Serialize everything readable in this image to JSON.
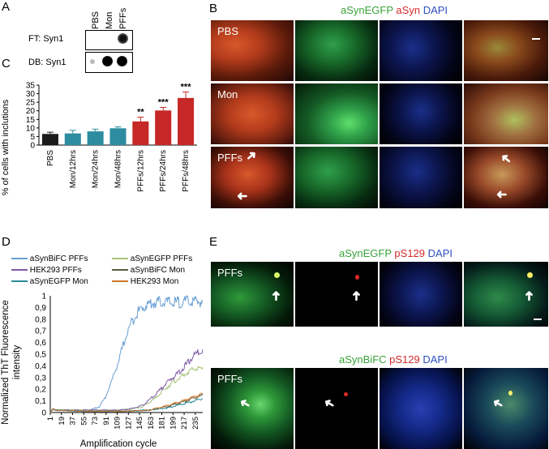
{
  "panels": {
    "A": {
      "label": "A",
      "columns": [
        "PBS",
        "Mon",
        "PFFs"
      ],
      "rows": [
        "FT: Syn1",
        "DB: Syn1"
      ]
    },
    "B": {
      "label": "B",
      "title_parts": [
        {
          "text": "aSynEGFP",
          "color": "#3aa33a"
        },
        {
          "text": "aSyn",
          "color": "#d42a2a"
        },
        {
          "text": "DAPI",
          "color": "#2e4fc0"
        }
      ],
      "rows": [
        "PBS",
        "Mon",
        "PFFs"
      ]
    },
    "C": {
      "label": "C",
      "significance": [
        "",
        "",
        "",
        "",
        "**",
        "***",
        "***"
      ]
    },
    "D": {
      "label": "D",
      "legend": [
        "aSynBiFC PFFs",
        "aSynEGFP PFFs",
        "HEK293 PFFs",
        "aSynBiFC Mon",
        "aSynEGFP Mon",
        "HEK293 Mon"
      ]
    },
    "E": {
      "label": "E",
      "row1_title": [
        {
          "text": "aSynEGFP",
          "color": "#3aa33a"
        },
        {
          "text": "pS129",
          "color": "#d42a2a"
        },
        {
          "text": "DAPI",
          "color": "#2e4fc0"
        }
      ],
      "row2_title": [
        {
          "text": "aSynBiFC",
          "color": "#3aa33a"
        },
        {
          "text": "pS129",
          "color": "#d42a2a"
        },
        {
          "text": "DAPI",
          "color": "#2e4fc0"
        }
      ],
      "row_label": "PFFs"
    }
  },
  "chart_data": [
    {
      "type": "bar",
      "categories": [
        "PBS",
        "Mon/12hrs",
        "Mon/24hrs",
        "Mon/48hrs",
        "PFFs/12hrs",
        "PFFs/24hrs",
        "PFFs/48hrs"
      ],
      "values": [
        6.5,
        6.8,
        8,
        9.8,
        13.8,
        20.2,
        27.5
      ],
      "errors": [
        1,
        1.8,
        1.3,
        0.8,
        2.5,
        1.8,
        3.5
      ],
      "colors": [
        "#1a1a1a",
        "#2e8ca0",
        "#2e8ca0",
        "#2e8ca0",
        "#c62828",
        "#c62828",
        "#c62828"
      ],
      "ylabel": "% of cells with inclutions",
      "ylim": [
        0,
        35
      ],
      "yticks": [
        0,
        5,
        10,
        15,
        20,
        25,
        30,
        35
      ]
    },
    {
      "type": "line",
      "xlabel": "Amplification cycle",
      "ylabel": "Normalized ThT Fluorescence intensity",
      "ylim": [
        0,
        1
      ],
      "yticks": [
        "0",
        "0,1",
        "0,2",
        "0,3",
        "0,4",
        "0,5",
        "0,6",
        "0,7",
        "0,8",
        "0,9",
        "1"
      ],
      "xticks": [
        1,
        19,
        37,
        55,
        73,
        91,
        109,
        127,
        145,
        163,
        181,
        199,
        217,
        235
      ],
      "xlim": [
        1,
        247
      ],
      "series": [
        {
          "name": "aSynBiFC PFFs",
          "color": "#6a9fd4",
          "x": [
            1,
            5,
            10,
            20,
            40,
            60,
            70,
            80,
            90,
            100,
            110,
            120,
            130,
            140,
            150,
            160,
            170,
            180,
            200,
            220,
            247
          ],
          "y": [
            0.0,
            0.03,
            0.02,
            0.02,
            0.02,
            0.02,
            0.03,
            0.05,
            0.13,
            0.27,
            0.42,
            0.6,
            0.75,
            0.85,
            0.9,
            0.93,
            0.94,
            0.95,
            0.94,
            0.95,
            0.95
          ]
        },
        {
          "name": "aSynEGFP PFFs",
          "color": "#a8c47a",
          "x": [
            1,
            5,
            10,
            40,
            80,
            110,
            130,
            150,
            170,
            190,
            210,
            225,
            235,
            247
          ],
          "y": [
            0.0,
            0.03,
            0.02,
            0.02,
            0.02,
            0.02,
            0.03,
            0.05,
            0.12,
            0.22,
            0.3,
            0.35,
            0.38,
            0.37
          ]
        },
        {
          "name": "HEK293 PFFs",
          "color": "#7f5aa8",
          "x": [
            1,
            5,
            10,
            40,
            80,
            110,
            130,
            150,
            170,
            190,
            210,
            225,
            235,
            247
          ],
          "y": [
            0.0,
            0.03,
            0.02,
            0.02,
            0.02,
            0.02,
            0.03,
            0.06,
            0.15,
            0.26,
            0.35,
            0.44,
            0.5,
            0.54
          ]
        },
        {
          "name": "aSynBiFC Mon",
          "color": "#5a5a3a",
          "x": [
            1,
            5,
            10,
            60,
            120,
            160,
            190,
            220,
            247
          ],
          "y": [
            0.0,
            0.03,
            0.02,
            0.01,
            0.01,
            0.02,
            0.05,
            0.1,
            0.15
          ]
        },
        {
          "name": "aSynEGFP Mon",
          "color": "#2a8a9a",
          "x": [
            1,
            5,
            10,
            60,
            120,
            160,
            190,
            220,
            247
          ],
          "y": [
            0.0,
            0.03,
            0.02,
            0.01,
            0.01,
            0.02,
            0.04,
            0.08,
            0.12
          ]
        },
        {
          "name": "HEK293 Mon",
          "color": "#d2762a",
          "x": [
            1,
            5,
            10,
            60,
            120,
            160,
            190,
            220,
            247
          ],
          "y": [
            0.0,
            0.03,
            0.02,
            0.01,
            0.01,
            0.02,
            0.06,
            0.11,
            0.16
          ]
        }
      ]
    }
  ]
}
